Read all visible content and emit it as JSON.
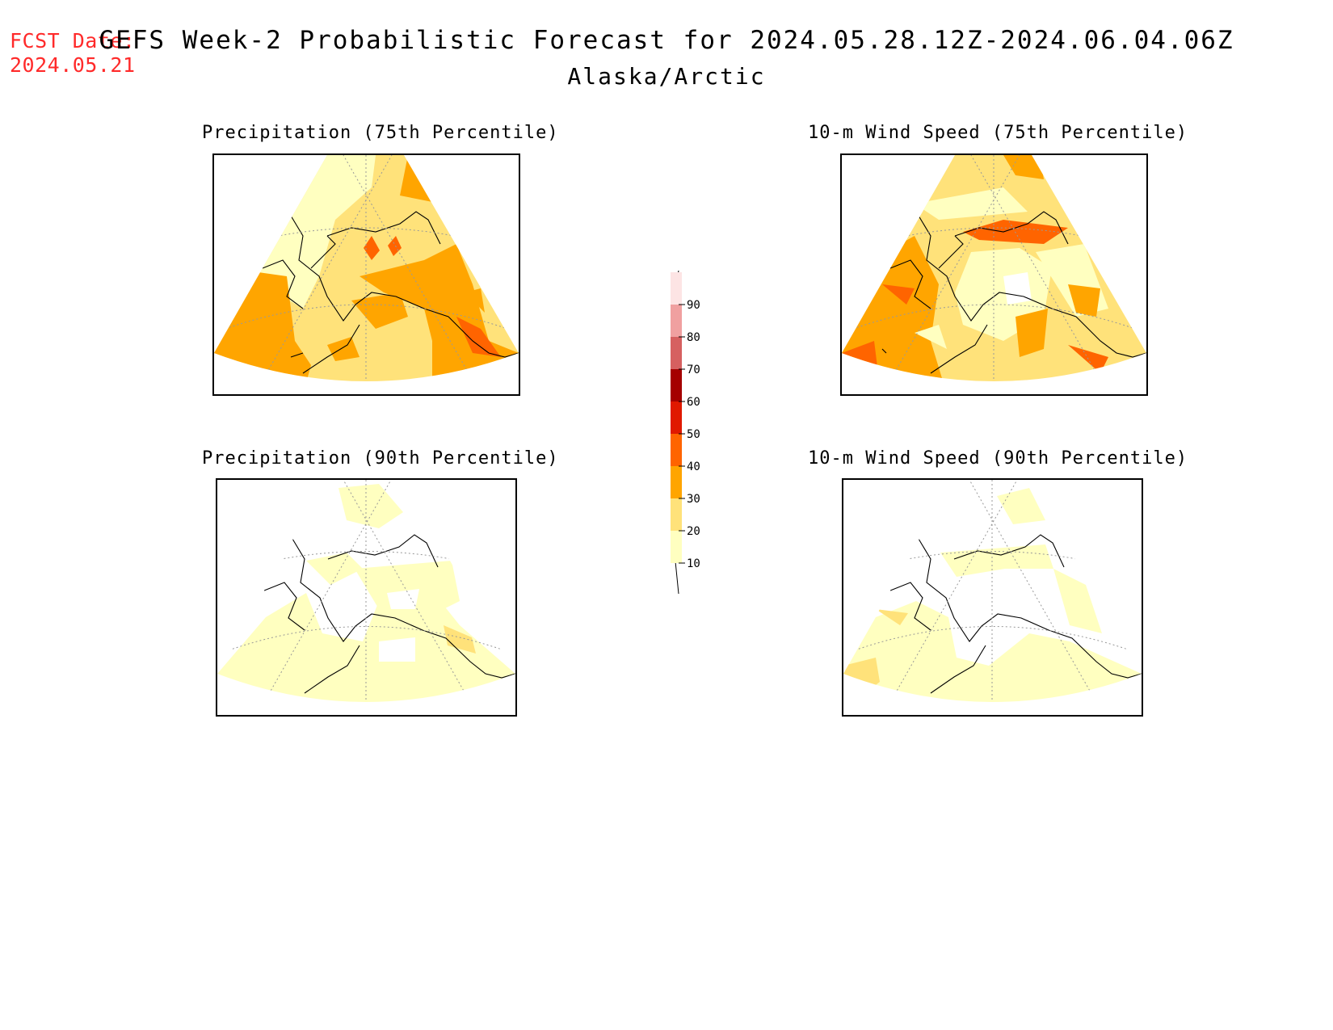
{
  "fcst": {
    "label": "FCST Date:",
    "date": "2024.05.21"
  },
  "title": {
    "line1": "GEFS Week-2 Probabilistic Forecast for 2024.05.28.12Z-2024.06.04.06Z",
    "line2": "Alaska/Arctic"
  },
  "panels": [
    {
      "title": "Precipitation (75th Percentile)"
    },
    {
      "title": "10-m Wind Speed (75th Percentile)"
    },
    {
      "title": "Precipitation (90th Percentile)"
    },
    {
      "title": "10-m Wind Speed (90th Percentile)"
    }
  ],
  "colorbar": {
    "levels": [
      "10",
      "20",
      "30",
      "40",
      "50",
      "60",
      "70",
      "80",
      "90"
    ],
    "colors": [
      "#ffffc0",
      "#ffe27a",
      "#ffa500",
      "#ff6400",
      "#e01900",
      "#a50000",
      "#d66060",
      "#f0a0a0",
      "#fde4e4"
    ]
  }
}
